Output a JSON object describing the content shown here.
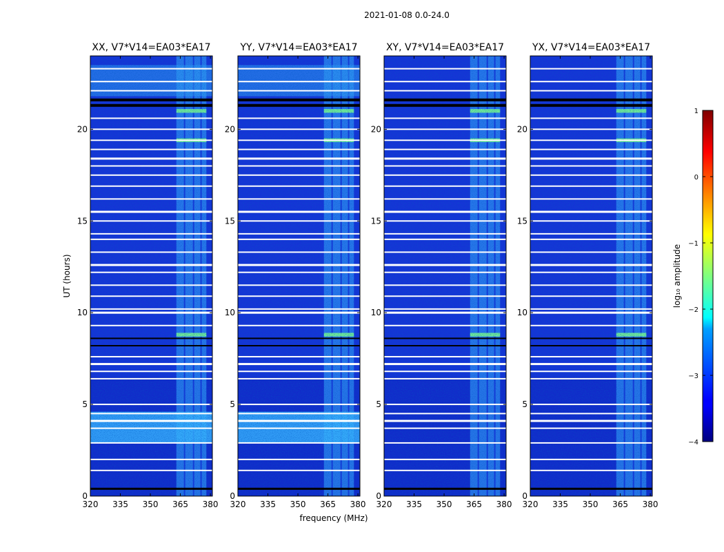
{
  "figure_title": "2021-01-08 0.0-24.0",
  "chart_data": {
    "type": "heatmap",
    "panels": [
      {
        "title": "XX, V7*V14=EA03*EA17"
      },
      {
        "title": "YY, V7*V14=EA03*EA17"
      },
      {
        "title": "XY, V7*V14=EA03*EA17"
      },
      {
        "title": "YX, V7*V14=EA03*EA17"
      }
    ],
    "xlabel": "frequency (MHz)",
    "ylabel": "UT (hours)",
    "xlim": [
      320,
      381
    ],
    "ylim": [
      0,
      24
    ],
    "xticks": [
      320,
      335,
      350,
      365,
      380
    ],
    "yticks": [
      0,
      5,
      10,
      15,
      20
    ],
    "rfi_band_mhz": [
      363,
      378
    ],
    "flagged_rows_hours": [
      0.4,
      1.4,
      2.0,
      2.9,
      3.7,
      4.1,
      4.5,
      5.0,
      6.4,
      6.8,
      7.2,
      7.6,
      8.2,
      8.6,
      9.3,
      10.0,
      10.2,
      10.9,
      11.5,
      12.2,
      12.6,
      13.3,
      14.0,
      14.3,
      15.0,
      15.5,
      16.2,
      16.9,
      17.5,
      18.0,
      18.4,
      18.9,
      19.4,
      20.0,
      20.6,
      21.3,
      21.6,
      22.1,
      22.6,
      23.3
    ],
    "colorbar": {
      "label": "log₁₀ amplitude",
      "min": -4,
      "max": 1,
      "ticks": [
        1,
        0,
        -1,
        -2,
        -3,
        -4
      ],
      "colormap": "jet"
    }
  }
}
